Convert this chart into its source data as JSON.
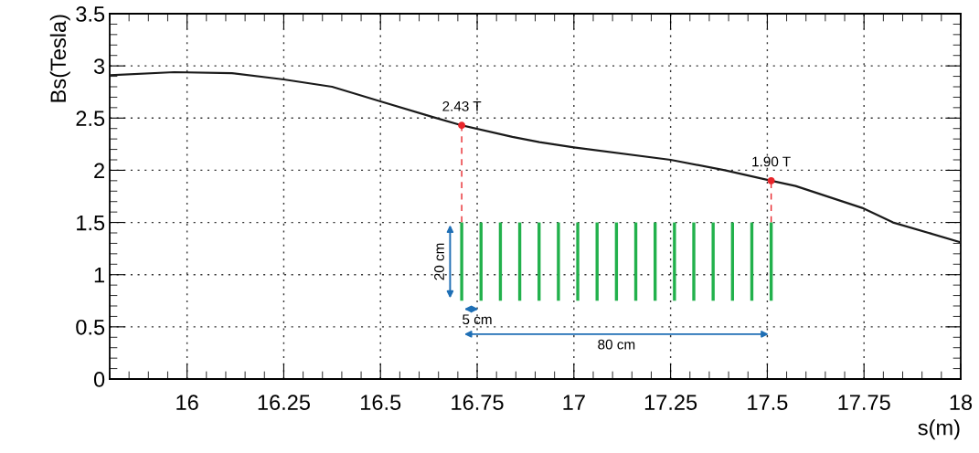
{
  "chart_data": {
    "type": "line",
    "xlabel": "s(m)",
    "ylabel": "Bs(Tesla)",
    "xlim": [
      15.8,
      18
    ],
    "ylim": [
      0,
      3.5
    ],
    "xticks": [
      16,
      16.25,
      16.5,
      16.75,
      17,
      17.25,
      17.5,
      17.75,
      18
    ],
    "yticks": [
      0,
      0.5,
      1,
      1.5,
      2,
      2.5,
      3,
      3.5
    ],
    "grid": true,
    "line_style": "solid",
    "marker": "none",
    "series": [
      {
        "color": "#1a1a1a",
        "x": [
          15.8,
          15.967,
          16.116,
          16.25,
          16.375,
          16.5,
          16.635,
          16.71,
          16.841,
          16.911,
          17.0,
          17.25,
          17.39,
          17.51,
          17.573,
          17.745,
          17.825,
          18.0
        ],
        "values": [
          2.91,
          2.94,
          2.93,
          2.87,
          2.8,
          2.66,
          2.51,
          2.43,
          2.32,
          2.27,
          2.22,
          2.1,
          2.0,
          1.9,
          1.85,
          1.64,
          1.5,
          1.31
        ]
      },
      {
        "type": "scatter",
        "color": "#e8262b",
        "marker": "circle",
        "x": [
          16.71,
          17.51
        ],
        "values": [
          2.43,
          1.9
        ],
        "value_labels": [
          "2.43 T",
          "1.90 T"
        ]
      },
      {
        "color": "#e8262b",
        "line_style": "dashed",
        "x": [
          16.71,
          16.71
        ],
        "values": [
          1.5,
          2.43
        ]
      },
      {
        "color": "#e8262b",
        "line_style": "dashed",
        "x": [
          17.51,
          17.51
        ],
        "values": [
          1.5,
          1.9
        ]
      },
      {
        "type": "bar",
        "color": "#22b14c",
        "x": [
          16.71,
          16.76,
          16.81,
          16.86,
          16.91,
          16.96,
          17.01,
          17.06,
          17.11,
          17.16,
          17.21,
          17.26,
          17.31,
          17.36,
          17.41,
          17.46,
          17.51
        ],
        "base": [
          0.75,
          0.75,
          0.75,
          0.75,
          0.75,
          0.75,
          0.75,
          0.75,
          0.75,
          0.75,
          0.75,
          0.75,
          0.75,
          0.75,
          0.75,
          0.75,
          0.75
        ],
        "values": [
          0.75,
          0.75,
          0.75,
          0.75,
          0.75,
          0.75,
          0.75,
          0.75,
          0.75,
          0.75,
          0.75,
          0.75,
          0.75,
          0.75,
          0.75,
          0.75,
          0.75
        ]
      }
    ],
    "annotations": [
      "20 cm",
      "5 cm",
      "80 cm"
    ]
  }
}
